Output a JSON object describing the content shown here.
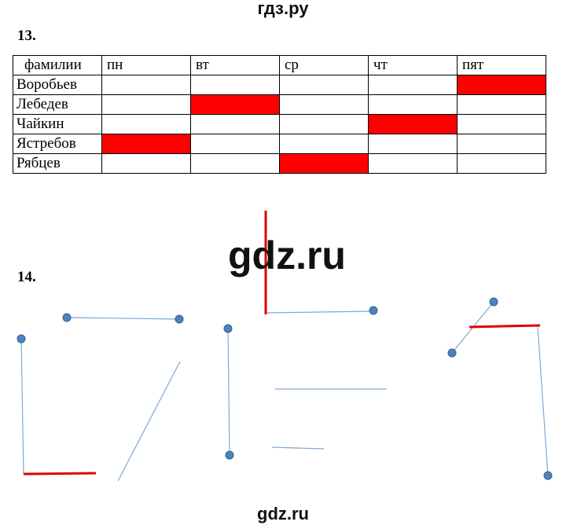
{
  "header": {
    "site": "гдз.ру"
  },
  "task13": {
    "number": "13.",
    "table": {
      "header": [
        "фамилии",
        "пн",
        "вт",
        "ср",
        "чт",
        "пят"
      ],
      "rows": [
        [
          "Воробьев"
        ],
        [
          "Лебедев"
        ],
        [
          "Чайкин"
        ],
        [
          "Ястребов"
        ],
        [
          "Рябцев"
        ]
      ]
    }
  },
  "watermark": "gdz.ru",
  "task14": {
    "number": "14."
  },
  "footer": {
    "site": "gdz.ru"
  }
}
